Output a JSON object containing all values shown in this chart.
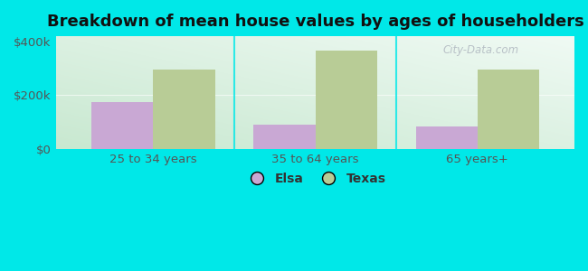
{
  "title": "Breakdown of mean house values by ages of householders",
  "categories": [
    "25 to 34 years",
    "35 to 64 years",
    "65 years+"
  ],
  "elsa_values": [
    175000,
    90000,
    85000
  ],
  "texas_values": [
    295000,
    365000,
    295000
  ],
  "elsa_color": "#c9a8d4",
  "texas_color": "#b8cc96",
  "ylim": [
    0,
    420000
  ],
  "yticks": [
    0,
    200000,
    400000
  ],
  "ytick_labels": [
    "$0",
    "$200k",
    "$400k"
  ],
  "background_color": "#00e8e8",
  "plot_bg_top_left": "#c8e8d0",
  "plot_bg_bottom_right": "#f0faf4",
  "legend_labels": [
    "Elsa",
    "Texas"
  ],
  "bar_width": 0.38,
  "title_fontsize": 13,
  "tick_fontsize": 9.5,
  "legend_fontsize": 10,
  "watermark": "City-Data.com"
}
